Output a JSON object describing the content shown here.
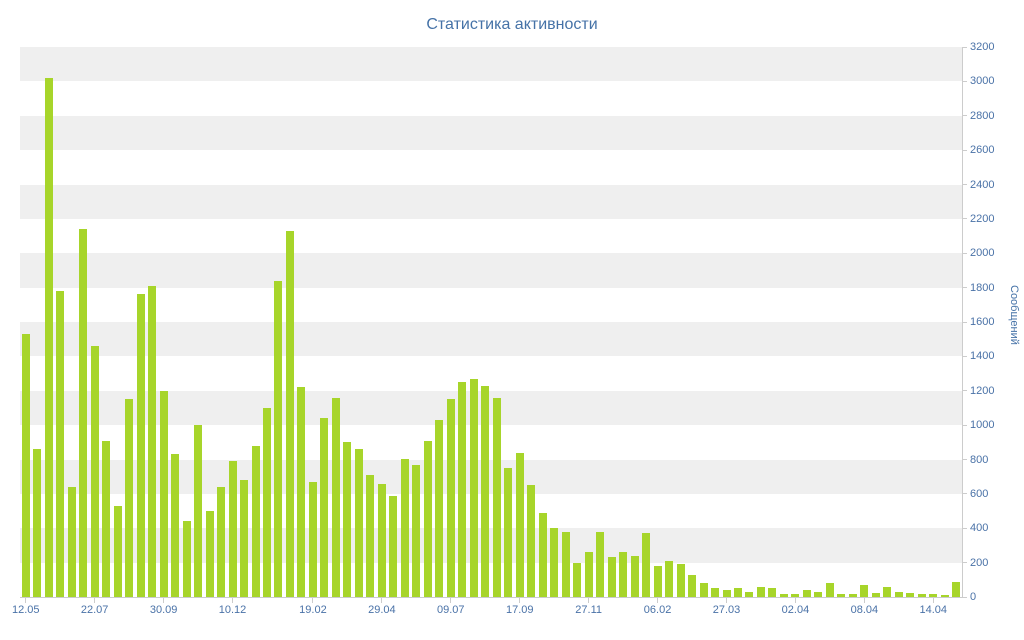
{
  "chart_data": {
    "type": "bar",
    "title": "Статистика активности",
    "xlabel": "",
    "ylabel": "Сообщений",
    "ylim": [
      0,
      3200
    ],
    "y_tick_step": 200,
    "y_tick_labels": [
      0,
      200,
      400,
      600,
      800,
      1000,
      1200,
      1400,
      1600,
      1800,
      2000,
      2200,
      2400,
      2600,
      2800,
      3000,
      3200
    ],
    "grid": "alternating-horizontal-bands",
    "legend": "none",
    "values": [
      1530,
      860,
      3020,
      1780,
      640,
      2140,
      1460,
      910,
      530,
      1150,
      1760,
      1810,
      1200,
      830,
      440,
      1000,
      500,
      640,
      790,
      680,
      880,
      1100,
      1840,
      2130,
      1220,
      670,
      1040,
      1160,
      900,
      860,
      710,
      660,
      590,
      800,
      770,
      910,
      1030,
      1150,
      1250,
      1270,
      1230,
      1160,
      750,
      840,
      650,
      490,
      400,
      380,
      200,
      260,
      380,
      230,
      260,
      240,
      370,
      180,
      210,
      190,
      130,
      80,
      50,
      40,
      55,
      30,
      60,
      50,
      20,
      15,
      40,
      30,
      80,
      20,
      15,
      70,
      25,
      60,
      30,
      25,
      20,
      15,
      10,
      90
    ],
    "x_ticks": [
      {
        "index": 0,
        "label": "12.05"
      },
      {
        "index": 6,
        "label": "22.07"
      },
      {
        "index": 12,
        "label": "30.09"
      },
      {
        "index": 18,
        "label": "10.12"
      },
      {
        "index": 25,
        "label": "19.02"
      },
      {
        "index": 31,
        "label": "29.04"
      },
      {
        "index": 37,
        "label": "09.07"
      },
      {
        "index": 43,
        "label": "17.09"
      },
      {
        "index": 49,
        "label": "27.11"
      },
      {
        "index": 55,
        "label": "06.02"
      },
      {
        "index": 61,
        "label": "27.03"
      },
      {
        "index": 67,
        "label": "02.04"
      },
      {
        "index": 73,
        "label": "08.04"
      },
      {
        "index": 79,
        "label": "14.04"
      }
    ],
    "colors": {
      "bar": "#a7d52a",
      "band": "#efefef",
      "axis": "#cccccc",
      "label": "#4a72a7",
      "title": "#4572a7"
    }
  }
}
